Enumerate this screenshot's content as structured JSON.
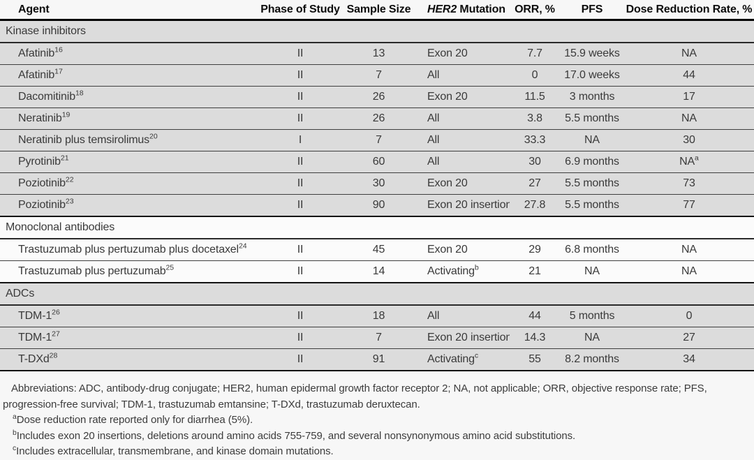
{
  "table": {
    "headers": {
      "agent": "Agent",
      "phase": "Phase of Study",
      "sample": "Sample Size",
      "her2_italic": "HER2",
      "her2_rest": "Mutation",
      "orr": "ORR, %",
      "pfs": "PFS",
      "dose": "Dose Reduction Rate, %"
    },
    "sections": [
      {
        "label": "Kinase inhibitors",
        "shaded": true,
        "rows": [
          {
            "agent": "Afatinib",
            "ref": "16",
            "phase": "II",
            "sample": "13",
            "her2": "Exon 20",
            "her2_sup": "",
            "orr": "7.7",
            "pfs": "15.9 weeks",
            "dose": "NA",
            "dose_sup": ""
          },
          {
            "agent": "Afatinib",
            "ref": "17",
            "phase": "II",
            "sample": "7",
            "her2": "All",
            "her2_sup": "",
            "orr": "0",
            "pfs": "17.0 weeks",
            "dose": "44",
            "dose_sup": ""
          },
          {
            "agent": "Dacomitinib",
            "ref": "18",
            "phase": "II",
            "sample": "26",
            "her2": "Exon 20",
            "her2_sup": "",
            "orr": "11.5",
            "pfs": "3 months",
            "dose": "17",
            "dose_sup": ""
          },
          {
            "agent": "Neratinib",
            "ref": "19",
            "phase": "II",
            "sample": "26",
            "her2": "All",
            "her2_sup": "",
            "orr": "3.8",
            "pfs": "5.5 months",
            "dose": "NA",
            "dose_sup": ""
          },
          {
            "agent": "Neratinib plus temsirolimus",
            "ref": "20",
            "phase": "I",
            "sample": "7",
            "her2": "All",
            "her2_sup": "",
            "orr": "33.3",
            "pfs": "NA",
            "dose": "30",
            "dose_sup": ""
          },
          {
            "agent": "Pyrotinib",
            "ref": "21",
            "phase": "II",
            "sample": "60",
            "her2": "All",
            "her2_sup": "",
            "orr": "30",
            "pfs": "6.9 months",
            "dose": "NA",
            "dose_sup": "a"
          },
          {
            "agent": "Poziotinib",
            "ref": "22",
            "phase": "II",
            "sample": "30",
            "her2": "Exon 20",
            "her2_sup": "",
            "orr": "27",
            "pfs": "5.5 months",
            "dose": "73",
            "dose_sup": ""
          },
          {
            "agent": "Poziotinib",
            "ref": "23",
            "phase": "II",
            "sample": "90",
            "her2": "Exon 20 insertion",
            "her2_sup": "",
            "orr": "27.8",
            "pfs": "5.5 months",
            "dose": "77",
            "dose_sup": ""
          }
        ]
      },
      {
        "label": "Monoclonal antibodies",
        "shaded": false,
        "rows": [
          {
            "agent": "Trastuzumab plus pertuzumab plus docetaxel",
            "ref": "24",
            "phase": "II",
            "sample": "45",
            "her2": "Exon 20",
            "her2_sup": "",
            "orr": "29",
            "pfs": "6.8 months",
            "dose": "NA",
            "dose_sup": ""
          },
          {
            "agent": "Trastuzumab plus pertuzumab",
            "ref": "25",
            "phase": "II",
            "sample": "14",
            "her2": "Activating",
            "her2_sup": "b",
            "orr": "21",
            "pfs": "NA",
            "dose": "NA",
            "dose_sup": ""
          }
        ]
      },
      {
        "label": "ADCs",
        "shaded": true,
        "rows": [
          {
            "agent": "TDM-1",
            "ref": "26",
            "phase": "II",
            "sample": "18",
            "her2": "All",
            "her2_sup": "",
            "orr": "44",
            "pfs": "5 months",
            "dose": "0",
            "dose_sup": ""
          },
          {
            "agent": "TDM-1",
            "ref": "27",
            "phase": "II",
            "sample": "7",
            "her2": "Exon 20 insertion",
            "her2_sup": "",
            "orr": "14.3",
            "pfs": "NA",
            "dose": "27",
            "dose_sup": ""
          },
          {
            "agent": "T-DXd",
            "ref": "28",
            "phase": "II",
            "sample": "91",
            "her2": "Activating",
            "her2_sup": "c",
            "orr": "55",
            "pfs": "8.2 months",
            "dose": "34",
            "dose_sup": ""
          }
        ]
      }
    ]
  },
  "footnotes": {
    "abbreviations": "Abbreviations: ADC, antibody-drug conjugate; HER2, human epidermal growth factor receptor 2; NA, not applicable; ORR, objective response rate; PFS, progression-free survival; TDM-1, trastuzumab emtansine; T-DXd, trastuzumab deruxtecan.",
    "notes": [
      {
        "sup": "a",
        "text": "Dose reduction rate reported only for diarrhea (5%)."
      },
      {
        "sup": "b",
        "text": "Includes exon 20 insertions, deletions around amino acids 755-759, and several nonsynonymous amino acid substitutions."
      },
      {
        "sup": "c",
        "text": "Includes extracellular, transmembrane, and kinase domain mutations."
      }
    ]
  },
  "colors": {
    "row_shaded": "#dcdcdc",
    "row_unshaded": "#fbfbfb",
    "border_thin": "#3f3f3f",
    "border_thick": "#141414",
    "header_text": "#0d0d0d",
    "body_text": "#3a3a3a"
  }
}
